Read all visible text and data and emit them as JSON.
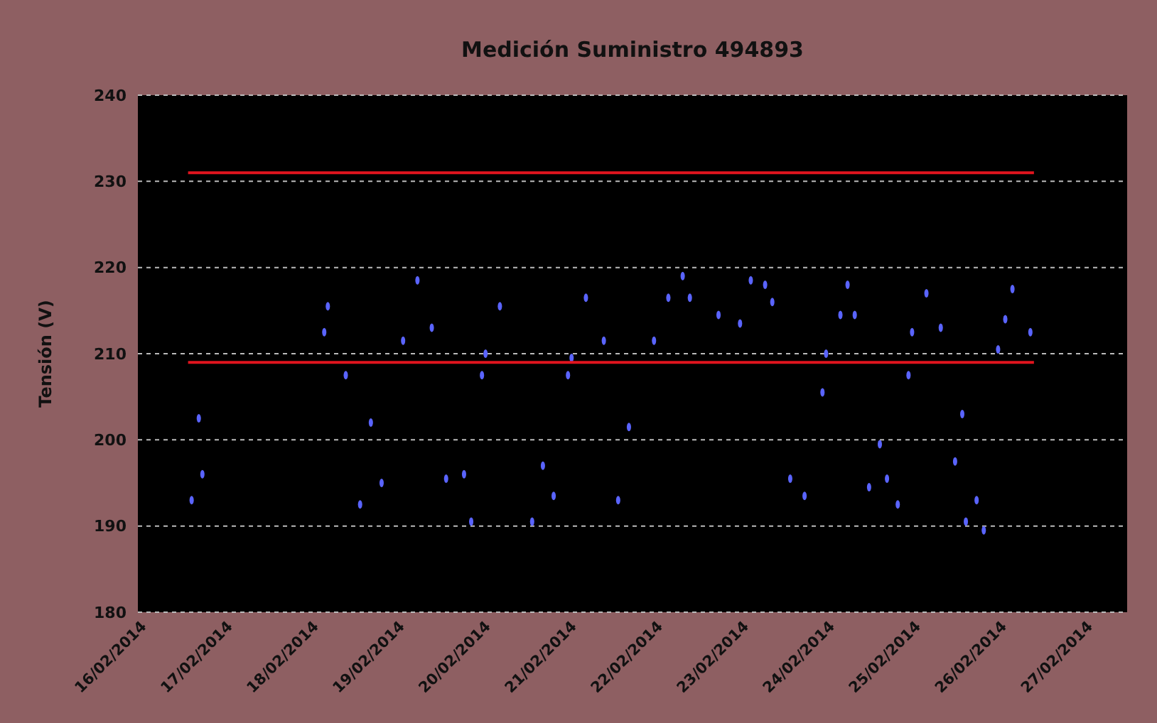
{
  "chart_data": {
    "type": "scatter",
    "title": "Medición Suministro 494893",
    "ylabel": "Tensión (V)",
    "ylim": [
      180,
      240
    ],
    "yticks": [
      180,
      190,
      200,
      210,
      220,
      230,
      240
    ],
    "xlim": [
      "2014-02-16",
      "2014-02-27T12:00"
    ],
    "xticks": [
      {
        "value": "2014-02-16",
        "label": "16/02/2014"
      },
      {
        "value": "2014-02-17",
        "label": "17/02/2014"
      },
      {
        "value": "2014-02-18",
        "label": "18/02/2014"
      },
      {
        "value": "2014-02-19",
        "label": "19/02/2014"
      },
      {
        "value": "2014-02-20",
        "label": "20/02/2014"
      },
      {
        "value": "2014-02-21",
        "label": "21/02/2014"
      },
      {
        "value": "2014-02-22",
        "label": "22/02/2014"
      },
      {
        "value": "2014-02-23",
        "label": "23/02/2014"
      },
      {
        "value": "2014-02-24",
        "label": "24/02/2014"
      },
      {
        "value": "2014-02-25",
        "label": "25/02/2014"
      },
      {
        "value": "2014-02-26",
        "label": "26/02/2014"
      },
      {
        "value": "2014-02-27",
        "label": "27/02/2014"
      }
    ],
    "grid": "y",
    "series": [
      {
        "color": "#5a64ff",
        "marker": "circle",
        "x": [
          "2014-02-16T15:00",
          "2014-02-16T17:00",
          "2014-02-16T18:00",
          "2014-02-18T04:00",
          "2014-02-18T05:00",
          "2014-02-18T10:00",
          "2014-02-18T14:00",
          "2014-02-18T17:00",
          "2014-02-18T20:00",
          "2014-02-19T02:00",
          "2014-02-19T06:00",
          "2014-02-19T10:00",
          "2014-02-19T14:00",
          "2014-02-19T19:00",
          "2014-02-19T21:00",
          "2014-02-20T00:00",
          "2014-02-20T01:00",
          "2014-02-20T05:00",
          "2014-02-20T14:00",
          "2014-02-20T17:00",
          "2014-02-20T20:00",
          "2014-02-21T00:00",
          "2014-02-21T01:00",
          "2014-02-21T05:00",
          "2014-02-21T10:00",
          "2014-02-21T14:00",
          "2014-02-21T17:00",
          "2014-02-22T00:00",
          "2014-02-22T04:00",
          "2014-02-22T08:00",
          "2014-02-22T10:00",
          "2014-02-22T18:00",
          "2014-02-23T00:00",
          "2014-02-23T03:00",
          "2014-02-23T07:00",
          "2014-02-23T09:00",
          "2014-02-23T14:00",
          "2014-02-23T18:00",
          "2014-02-23T23:00",
          "2014-02-24T00:00",
          "2014-02-24T04:00",
          "2014-02-24T06:00",
          "2014-02-24T08:00",
          "2014-02-24T12:00",
          "2014-02-24T15:00",
          "2014-02-24T17:00",
          "2014-02-24T20:00",
          "2014-02-24T23:00",
          "2014-02-25T00:00",
          "2014-02-25T04:00",
          "2014-02-25T08:00",
          "2014-02-25T12:00",
          "2014-02-25T14:00",
          "2014-02-25T15:00",
          "2014-02-25T18:00",
          "2014-02-25T20:00",
          "2014-02-26T00:00",
          "2014-02-26T02:00",
          "2014-02-26T04:00",
          "2014-02-26T09:00"
        ],
        "values": [
          193,
          202.5,
          196,
          212.5,
          215.5,
          207.5,
          192.5,
          202,
          195,
          211.5,
          218.5,
          213,
          195.5,
          196,
          190.5,
          207.5,
          210,
          215.5,
          190.5,
          197,
          193.5,
          207.5,
          209.5,
          216.5,
          211.5,
          193,
          201.5,
          211.5,
          216.5,
          219,
          216.5,
          214.5,
          213.5,
          218.5,
          218,
          216,
          195.5,
          193.5,
          205.5,
          210,
          214.5,
          218,
          214.5,
          194.5,
          199.5,
          195.5,
          192.5,
          207.5,
          212.5,
          217,
          213,
          197.5,
          203,
          190.5,
          193,
          189.5,
          210.5,
          214,
          217.5,
          212.5
        ]
      },
      {
        "type": "line",
        "color": "#e0141e",
        "x": [
          "2014-02-16T14:00",
          "2014-02-26T10:00"
        ],
        "values": [
          231,
          231
        ]
      },
      {
        "type": "line",
        "color": "#e0141e",
        "x": [
          "2014-02-16T14:00",
          "2014-02-26T10:00"
        ],
        "values": [
          209,
          209
        ]
      }
    ]
  }
}
